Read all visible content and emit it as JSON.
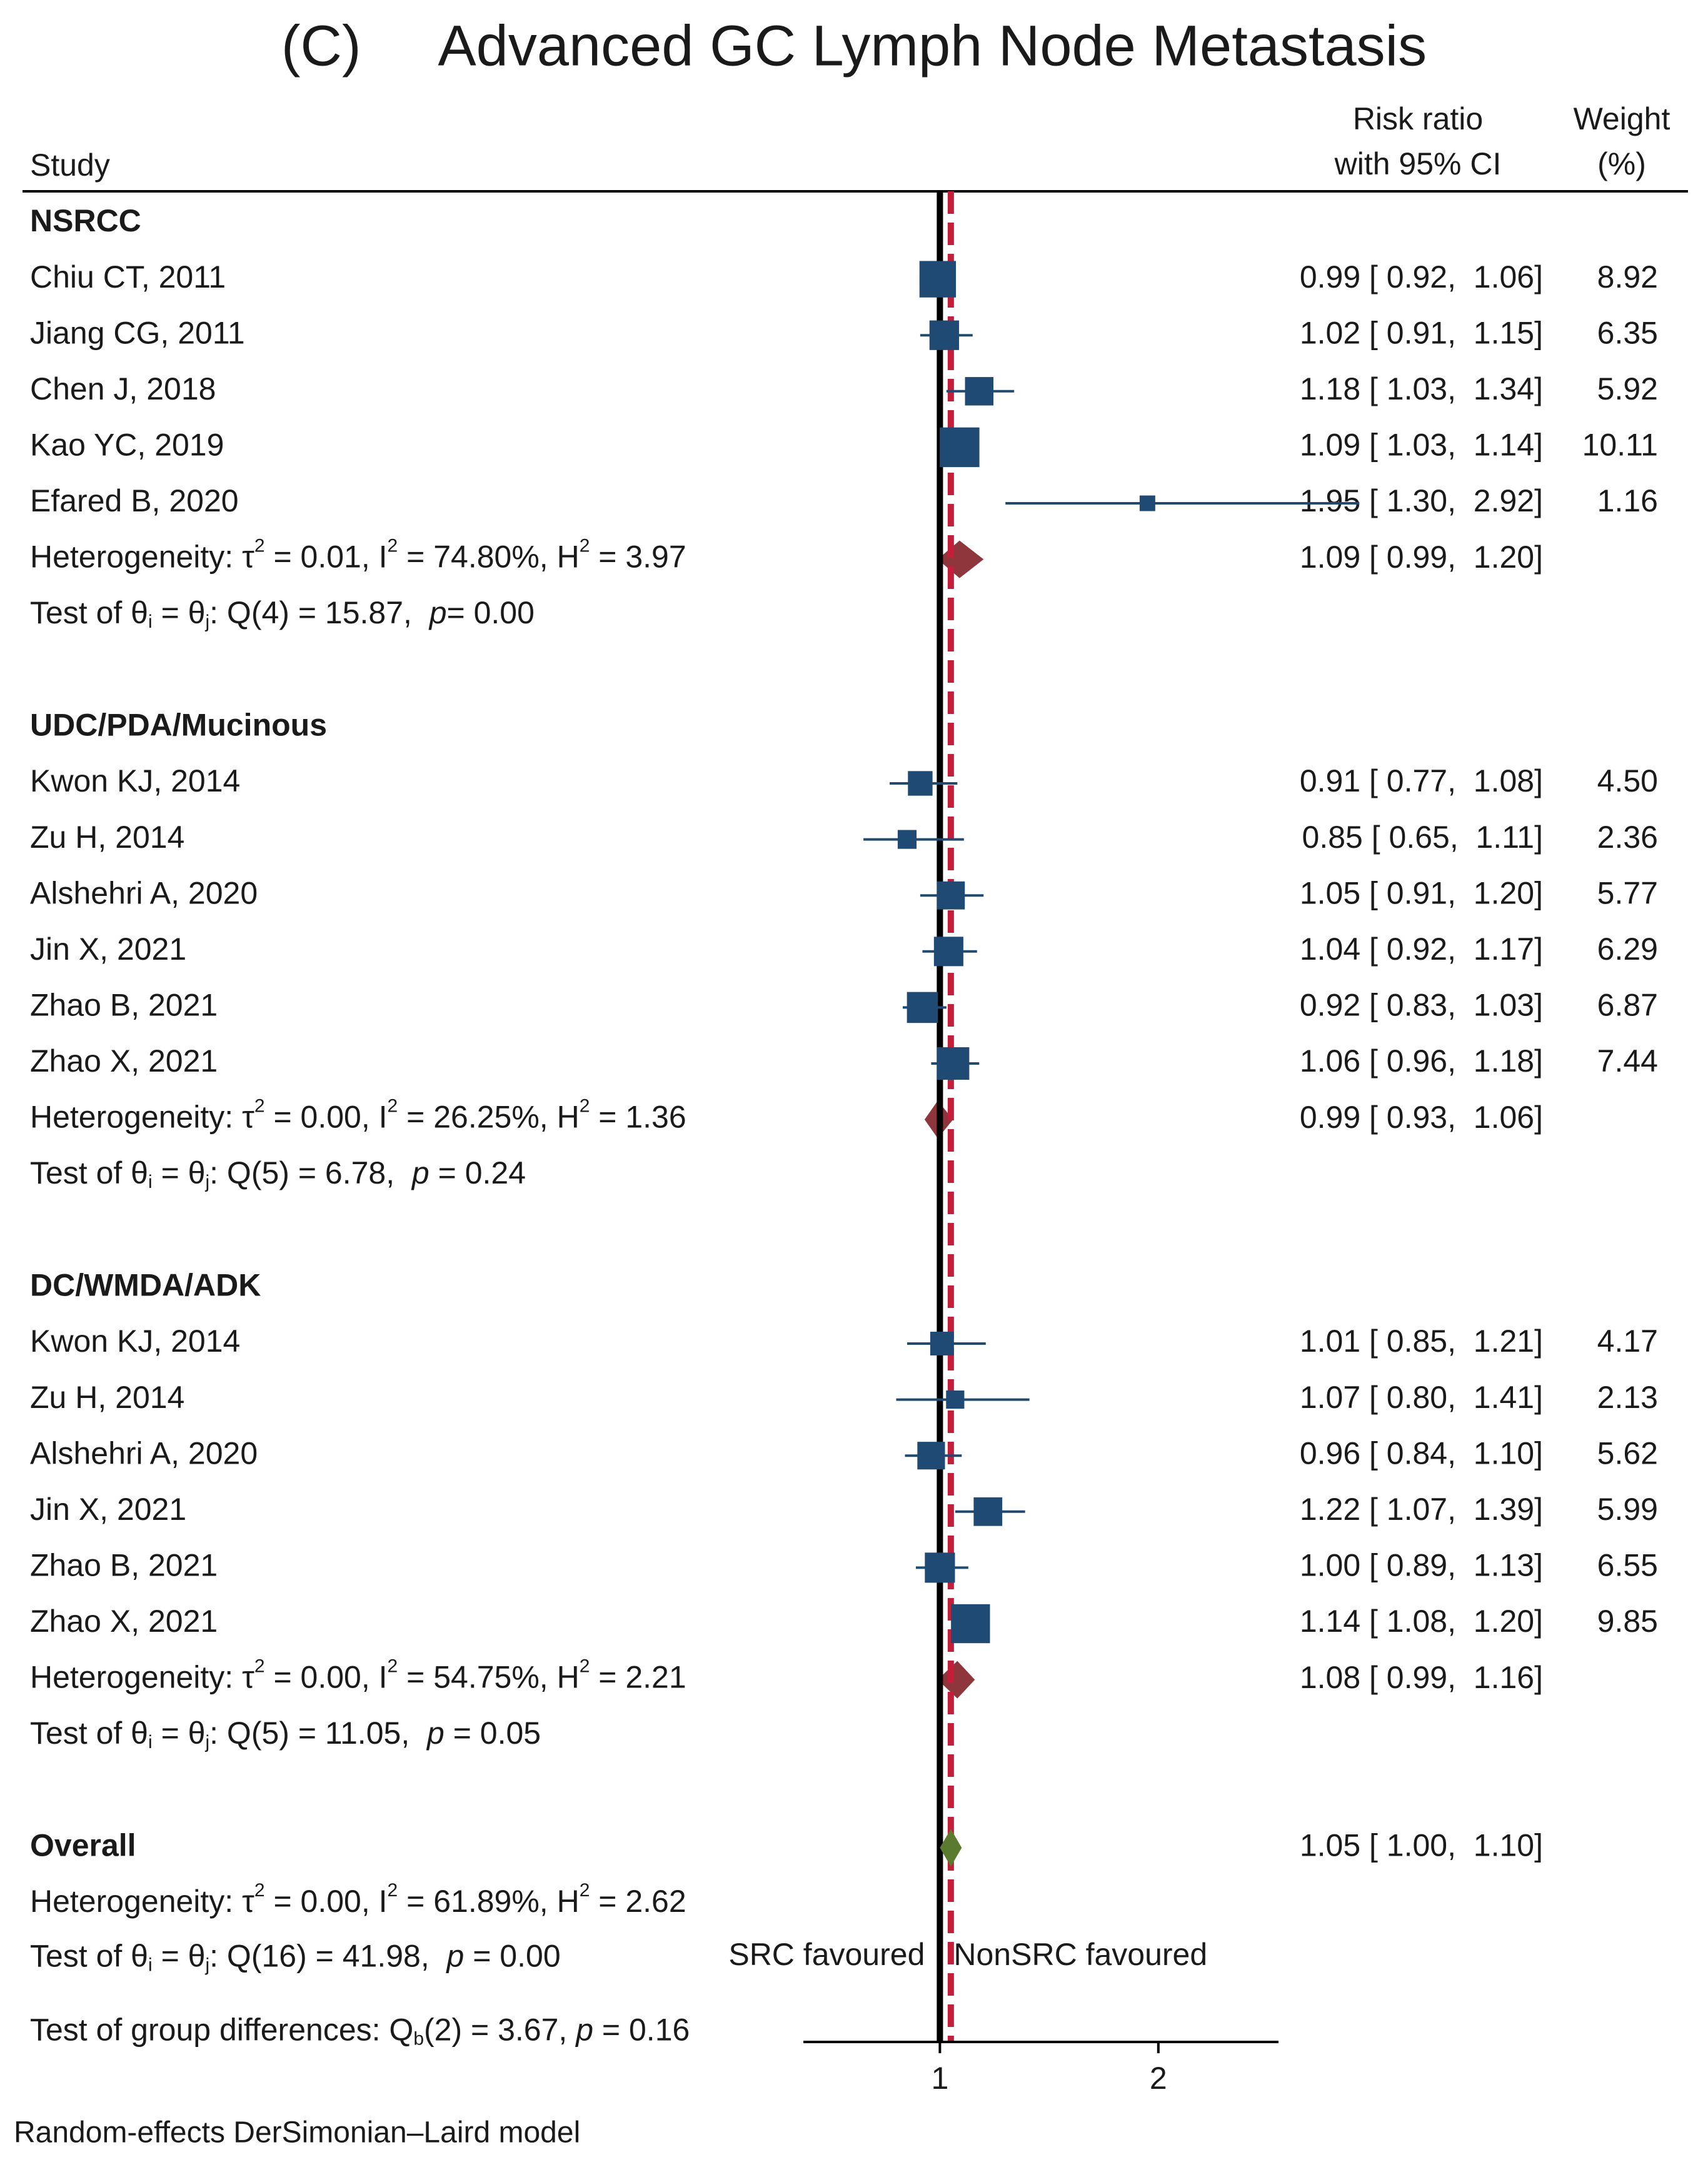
{
  "chart_data": {
    "type": "forest",
    "title": "(C)     Advanced GC Lymph Node Metastasis",
    "columns": {
      "study": "Study",
      "rr_line1": "Risk ratio",
      "rr_line2": "with 95% CI",
      "weight_line1": "Weight",
      "weight_line2": "(%)"
    },
    "groups": [
      {
        "name": "NSRCC",
        "studies": [
          {
            "label": "Chiu CT, 2011",
            "rr": 0.99,
            "lo": 0.92,
            "hi": 1.06,
            "ci_text": "0.99 [ 0.92,  1.06]",
            "weight": "8.92"
          },
          {
            "label": "Jiang CG, 2011",
            "rr": 1.02,
            "lo": 0.91,
            "hi": 1.15,
            "ci_text": "1.02 [ 0.91,  1.15]",
            "weight": "6.35"
          },
          {
            "label": "Chen J, 2018",
            "rr": 1.18,
            "lo": 1.03,
            "hi": 1.34,
            "ci_text": "1.18 [ 1.03,  1.34]",
            "weight": "5.92"
          },
          {
            "label": "Kao YC, 2019",
            "rr": 1.09,
            "lo": 1.03,
            "hi": 1.14,
            "ci_text": "1.09 [ 1.03,  1.14]",
            "weight": "10.11"
          },
          {
            "label": "Efared B, 2020",
            "rr": 1.95,
            "lo": 1.3,
            "hi": 2.92,
            "ci_text": "1.95 [ 1.30,  2.92]",
            "weight": "1.16"
          }
        ],
        "summary": {
          "rr": 1.09,
          "lo": 0.99,
          "hi": 1.2,
          "ci_text": "1.09 [ 0.99,  1.20]"
        },
        "het": {
          "tau": "0.01",
          "i2": "74.80%",
          "h2": "3.97"
        },
        "test": {
          "df": "4",
          "q": "15.87",
          "p": "0.00",
          "p_sep": "= "
        }
      },
      {
        "name": "UDC/PDA/Mucinous",
        "studies": [
          {
            "label": "Kwon KJ, 2014",
            "rr": 0.91,
            "lo": 0.77,
            "hi": 1.08,
            "ci_text": "0.91 [ 0.77,  1.08]",
            "weight": "4.50"
          },
          {
            "label": "Zu H, 2014",
            "rr": 0.85,
            "lo": 0.65,
            "hi": 1.11,
            "ci_text": "0.85 [ 0.65,  1.11]",
            "weight": "2.36"
          },
          {
            "label": "Alshehri A, 2020",
            "rr": 1.05,
            "lo": 0.91,
            "hi": 1.2,
            "ci_text": "1.05 [ 0.91,  1.20]",
            "weight": "5.77"
          },
          {
            "label": "Jin X, 2021",
            "rr": 1.04,
            "lo": 0.92,
            "hi": 1.17,
            "ci_text": "1.04 [ 0.92,  1.17]",
            "weight": "6.29"
          },
          {
            "label": "Zhao B, 2021",
            "rr": 0.92,
            "lo": 0.83,
            "hi": 1.03,
            "ci_text": "0.92 [ 0.83,  1.03]",
            "weight": "6.87"
          },
          {
            "label": "Zhao X, 2021",
            "rr": 1.06,
            "lo": 0.96,
            "hi": 1.18,
            "ci_text": "1.06 [ 0.96,  1.18]",
            "weight": "7.44"
          }
        ],
        "summary": {
          "rr": 0.99,
          "lo": 0.93,
          "hi": 1.06,
          "ci_text": "0.99 [ 0.93,  1.06]"
        },
        "het": {
          "tau": "0.00",
          "i2": "26.25%",
          "h2": "1.36"
        },
        "test": {
          "df": "5",
          "q": "6.78",
          "p": "0.24",
          "p_sep": " = "
        }
      },
      {
        "name": "DC/WMDA/ADK",
        "studies": [
          {
            "label": "Kwon KJ, 2014",
            "rr": 1.01,
            "lo": 0.85,
            "hi": 1.21,
            "ci_text": "1.01 [ 0.85,  1.21]",
            "weight": "4.17"
          },
          {
            "label": "Zu H, 2014",
            "rr": 1.07,
            "lo": 0.8,
            "hi": 1.41,
            "ci_text": "1.07 [ 0.80,  1.41]",
            "weight": "2.13"
          },
          {
            "label": "Alshehri A, 2020",
            "rr": 0.96,
            "lo": 0.84,
            "hi": 1.1,
            "ci_text": "0.96 [ 0.84,  1.10]",
            "weight": "5.62"
          },
          {
            "label": "Jin X, 2021",
            "rr": 1.22,
            "lo": 1.07,
            "hi": 1.39,
            "ci_text": "1.22 [ 1.07,  1.39]",
            "weight": "5.99"
          },
          {
            "label": "Zhao B, 2021",
            "rr": 1.0,
            "lo": 0.89,
            "hi": 1.13,
            "ci_text": "1.00 [ 0.89,  1.13]",
            "weight": "6.55"
          },
          {
            "label": "Zhao X, 2021",
            "rr": 1.14,
            "lo": 1.08,
            "hi": 1.2,
            "ci_text": "1.14 [ 1.08,  1.20]",
            "weight": "9.85"
          }
        ],
        "summary": {
          "rr": 1.08,
          "lo": 0.99,
          "hi": 1.16,
          "ci_text": "1.08 [ 0.99,  1.16]"
        },
        "het": {
          "tau": "0.00",
          "i2": "54.75%",
          "h2": "2.21"
        },
        "test": {
          "df": "5",
          "q": "11.05",
          "p": "0.05",
          "p_sep": " = "
        }
      }
    ],
    "overall": {
      "label": "Overall",
      "rr": 1.05,
      "lo": 1.0,
      "hi": 1.1,
      "ci_text": "1.05 [ 1.00,  1.10]",
      "het": {
        "tau": "0.00",
        "i2": "61.89%",
        "h2": "2.62"
      },
      "test": {
        "df": "16",
        "q": "41.98",
        "p": "0.00",
        "p_sep": " = "
      }
    },
    "group_test": {
      "df": "2",
      "q": "3.67",
      "p": "0.16"
    },
    "labels": {
      "heterogeneity": "Heterogeneity: ",
      "tau_symbol": "τ",
      "i_symbol": "I",
      "h_symbol": "H",
      "sq": "2",
      "test_prefix": "Test of θ",
      "test_sub_i": "i",
      "test_eq": " = θ",
      "test_sub_j": "j",
      "q_symbol": "Q",
      "p_symbol": "p",
      "group_test_prefix": "Test of group differences: Q",
      "group_test_sub": "b",
      "left_favour": "SRC favoured",
      "right_favour": "NonSRC favoured",
      "footnote": "Random-effects DerSimonian–Laird model"
    },
    "x_axis": {
      "ticks": [
        1,
        2
      ],
      "range": [
        0.375,
        2.55
      ],
      "null_line": 1,
      "overall_line": 1.05
    },
    "colors": {
      "study": "#1f4a73",
      "subgroup_diamond": "#8f353c",
      "overall_diamond": "#5a7a2e",
      "overall_line": "#c41e3a",
      "axis": "#000000"
    }
  }
}
